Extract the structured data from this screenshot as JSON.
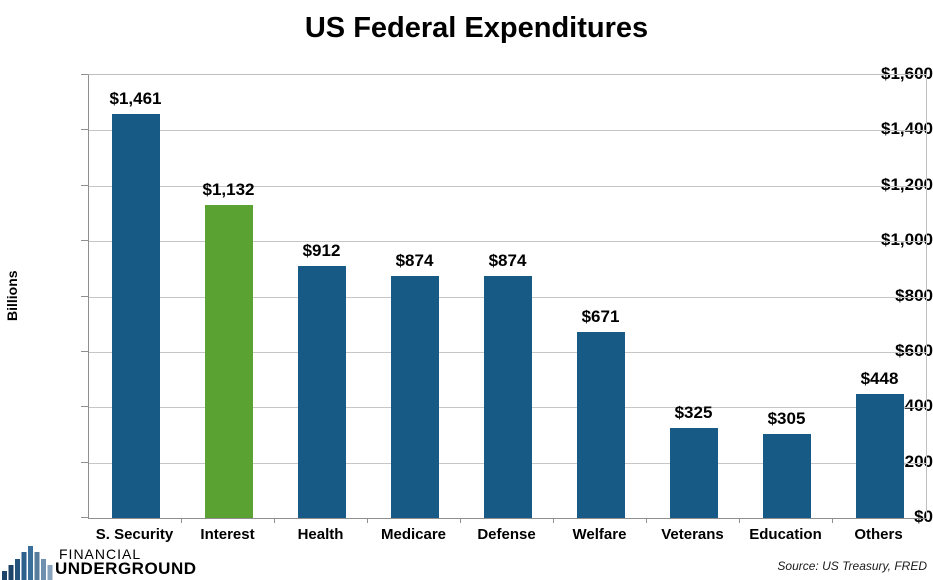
{
  "chart_data": {
    "type": "bar",
    "title": "US Federal Expenditures",
    "xlabel": "",
    "ylabel": "Billions",
    "categories": [
      "S. Security",
      "Interest",
      "Health",
      "Medicare",
      "Defense",
      "Welfare",
      "Veterans",
      "Education",
      "Others"
    ],
    "values": [
      1461,
      1132,
      912,
      874,
      874,
      671,
      325,
      305,
      448
    ],
    "value_labels": [
      "$1,461",
      "$1,132",
      "$912",
      "$874",
      "$874",
      "$671",
      "$325",
      "$305",
      "$448"
    ],
    "ylim": [
      0,
      1600
    ],
    "ytick_step": 200,
    "ytick_labels": [
      "$0",
      "$200",
      "$400",
      "$600",
      "$800",
      "$1,000",
      "$1,200",
      "$1,400",
      "$1,600"
    ],
    "grid": true,
    "legend": "none",
    "bar_color": "#175a85",
    "highlight_color": "#5aa332",
    "highlight_index": 1,
    "gridline_color": "#c6c6c6",
    "axis_color": "#8f8f8f"
  },
  "footer": {
    "logo": {
      "icon": "bar-chart-skyline-icon",
      "line1": "FINANCIAL",
      "line2": "UNDERGROUND",
      "line1_color": "#7c9cc0",
      "line2_color": "#56a22e"
    },
    "source": "Source: US Treasury, FRED"
  }
}
